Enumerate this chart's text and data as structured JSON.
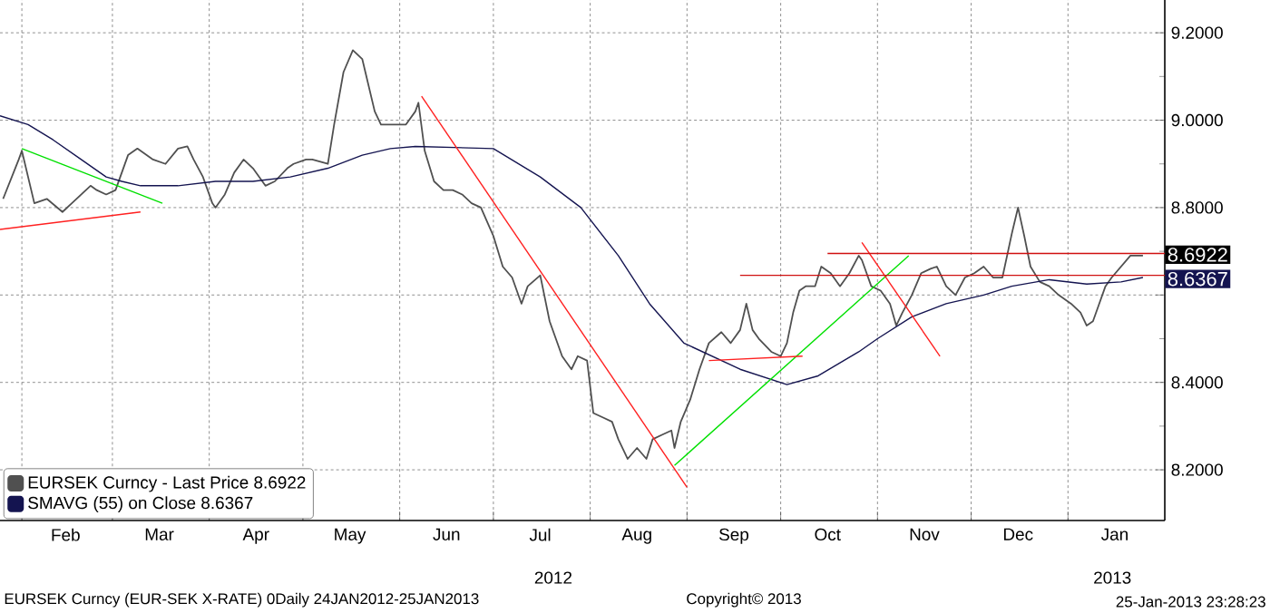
{
  "chart_data": {
    "type": "line",
    "x": [
      "2012-01-26",
      "2012-01-31",
      "2012-02-01",
      "2012-02-05",
      "2012-02-09",
      "2012-02-14",
      "2012-02-17",
      "2012-02-20",
      "2012-02-23",
      "2012-02-25",
      "2012-02-28",
      "2012-03-02",
      "2012-03-06",
      "2012-03-09",
      "2012-03-14",
      "2012-03-18",
      "2012-03-22",
      "2012-03-25",
      "2012-03-27",
      "2012-03-30",
      "2012-04-02",
      "2012-04-03",
      "2012-04-06",
      "2012-04-09",
      "2012-04-12",
      "2012-04-15",
      "2012-04-19",
      "2012-04-22",
      "2012-04-26",
      "2012-04-28",
      "2012-05-02",
      "2012-05-04",
      "2012-05-09",
      "2012-05-11",
      "2012-05-14",
      "2012-05-17",
      "2012-05-20",
      "2012-05-21",
      "2012-05-24",
      "2012-05-26",
      "2012-05-30",
      "2012-06-03",
      "2012-06-06",
      "2012-06-07",
      "2012-06-09",
      "2012-06-12",
      "2012-06-15",
      "2012-06-18",
      "2012-06-21",
      "2012-06-24",
      "2012-06-27",
      "2012-07-01",
      "2012-07-04",
      "2012-07-07",
      "2012-07-10",
      "2012-07-12",
      "2012-07-16",
      "2012-07-19",
      "2012-07-23",
      "2012-07-26",
      "2012-07-28",
      "2012-07-31",
      "2012-08-02",
      "2012-08-05",
      "2012-08-08",
      "2012-08-10",
      "2012-08-13",
      "2012-08-16",
      "2012-08-19",
      "2012-08-21",
      "2012-08-24",
      "2012-08-27",
      "2012-08-28",
      "2012-08-30",
      "2012-09-02",
      "2012-09-05",
      "2012-09-08",
      "2012-09-12",
      "2012-09-15",
      "2012-09-18",
      "2012-09-20",
      "2012-09-22",
      "2012-09-24",
      "2012-09-28",
      "2012-10-01",
      "2012-10-03",
      "2012-10-05",
      "2012-10-07",
      "2012-10-09",
      "2012-10-12",
      "2012-10-14",
      "2012-10-17",
      "2012-10-20",
      "2012-10-23",
      "2012-10-26",
      "2012-10-27",
      "2012-10-30",
      "2012-11-02",
      "2012-11-05",
      "2012-11-07",
      "2012-11-09",
      "2012-11-12",
      "2012-11-15",
      "2012-11-18",
      "2012-11-20",
      "2012-11-23",
      "2012-11-26",
      "2012-11-29",
      "2012-12-02",
      "2012-12-05",
      "2012-12-08",
      "2012-12-11",
      "2012-12-14",
      "2012-12-16",
      "2012-12-18",
      "2012-12-20",
      "2012-12-23",
      "2012-12-26",
      "2012-12-29",
      "2013-01-02",
      "2013-01-05",
      "2013-01-07",
      "2013-01-09",
      "2013-01-11",
      "2013-01-13",
      "2013-01-15",
      "2013-01-18",
      "2013-01-21",
      "2013-01-23",
      "2013-01-25"
    ],
    "series": [
      {
        "name": "EURSEK Curncy - Last Price 8.6922",
        "color": "#505050",
        "values": [
          8.82,
          8.91,
          8.93,
          8.81,
          8.82,
          8.79,
          8.81,
          8.83,
          8.85,
          8.84,
          8.83,
          8.84,
          8.92,
          8.935,
          8.91,
          8.9,
          8.935,
          8.94,
          8.91,
          8.87,
          8.81,
          8.8,
          8.83,
          8.88,
          8.91,
          8.89,
          8.85,
          8.86,
          8.89,
          8.9,
          8.91,
          8.91,
          8.9,
          8.99,
          9.11,
          9.16,
          9.14,
          9.11,
          9.02,
          8.99,
          8.99,
          8.99,
          9.02,
          9.04,
          8.93,
          8.86,
          8.84,
          8.84,
          8.83,
          8.81,
          8.8,
          8.735,
          8.665,
          8.64,
          8.58,
          8.62,
          8.645,
          8.54,
          8.46,
          8.43,
          8.46,
          8.45,
          8.33,
          8.32,
          8.31,
          8.27,
          8.225,
          8.25,
          8.225,
          8.27,
          8.28,
          8.29,
          8.25,
          8.31,
          8.36,
          8.43,
          8.49,
          8.515,
          8.49,
          8.52,
          8.58,
          8.52,
          8.5,
          8.47,
          8.46,
          8.49,
          8.56,
          8.61,
          8.62,
          8.62,
          8.665,
          8.65,
          8.62,
          8.65,
          8.69,
          8.68,
          8.62,
          8.61,
          8.58,
          8.53,
          8.56,
          8.6,
          8.65,
          8.66,
          8.665,
          8.62,
          8.6,
          8.64,
          8.65,
          8.665,
          8.64,
          8.64,
          8.74,
          8.8,
          8.735,
          8.665,
          8.63,
          8.62,
          8.6,
          8.58,
          8.56,
          8.53,
          8.54,
          8.58,
          8.62,
          8.64,
          8.665,
          8.69,
          8.69,
          8.69
        ]
      },
      {
        "name": "SMAVG (55) on Close 8.6367",
        "color": "#141450",
        "x": [
          "2012-01-25",
          "2012-02-03",
          "2012-02-11",
          "2012-02-20",
          "2012-02-28",
          "2012-03-04",
          "2012-03-10",
          "2012-03-22",
          "2012-04-03",
          "2012-04-15",
          "2012-04-27",
          "2012-05-09",
          "2012-05-20",
          "2012-05-29",
          "2012-06-06",
          "2012-07-01",
          "2012-07-16",
          "2012-07-29",
          "2012-08-10",
          "2012-08-20",
          "2012-08-31",
          "2012-09-18",
          "2012-10-03",
          "2012-10-13",
          "2012-10-26",
          "2012-11-01",
          "2012-11-12",
          "2012-11-23",
          "2012-12-05",
          "2012-12-14",
          "2012-12-26",
          "2013-01-07",
          "2013-01-18",
          "2013-01-25"
        ],
        "values": [
          9.01,
          8.99,
          8.955,
          8.91,
          8.87,
          8.86,
          8.85,
          8.85,
          8.86,
          8.86,
          8.87,
          8.89,
          8.92,
          8.935,
          8.94,
          8.935,
          8.87,
          8.8,
          8.69,
          8.58,
          8.49,
          8.43,
          8.395,
          8.415,
          8.47,
          8.5,
          8.55,
          8.58,
          8.6,
          8.62,
          8.635,
          8.625,
          8.63,
          8.64
        ]
      },
      {
        "type": "line",
        "color": "#00e000",
        "x": [
          "2012-02-01",
          "2012-03-17"
        ],
        "values": [
          8.935,
          8.81
        ]
      },
      {
        "type": "line",
        "color": "#ff2020",
        "x": [
          "2012-01-25",
          "2012-03-10"
        ],
        "values": [
          8.75,
          8.79
        ]
      },
      {
        "type": "line",
        "color": "#ff2020",
        "x": [
          "2012-06-08",
          "2012-09-01"
        ],
        "values": [
          9.055,
          8.16
        ]
      },
      {
        "type": "line",
        "color": "#00e000",
        "x": [
          "2012-08-28",
          "2012-11-11"
        ],
        "values": [
          8.21,
          8.69
        ]
      },
      {
        "type": "line",
        "color": "#ff2020",
        "x": [
          "2012-09-08",
          "2012-10-08"
        ],
        "values": [
          8.45,
          8.46
        ]
      },
      {
        "type": "line",
        "color": "#ff2020",
        "x": [
          "2012-10-27",
          "2012-11-21"
        ],
        "values": [
          8.72,
          8.46
        ]
      },
      {
        "type": "line",
        "color": "#d01010",
        "x": [
          "2012-10-16",
          "2013-02-01"
        ],
        "values": [
          8.695,
          8.695
        ]
      },
      {
        "type": "line",
        "color": "#d01010",
        "x": [
          "2012-09-18",
          "2013-02-01"
        ],
        "values": [
          8.645,
          8.645
        ]
      }
    ],
    "xlim": [
      "2012-01-25",
      "2013-02-01"
    ],
    "xticks": [
      {
        "value": "2012-02-01",
        "label": null
      },
      {
        "value": "2012-02-15",
        "label": "Feb"
      },
      {
        "value": "2012-03-01",
        "label": null
      },
      {
        "value": "2012-03-16",
        "label": "Mar"
      },
      {
        "value": "2012-04-01",
        "label": null
      },
      {
        "value": "2012-04-16",
        "label": "Apr"
      },
      {
        "value": "2012-05-01",
        "label": null
      },
      {
        "value": "2012-05-16",
        "label": "May"
      },
      {
        "value": "2012-06-01",
        "label": null
      },
      {
        "value": "2012-06-16",
        "label": "Jun"
      },
      {
        "value": "2012-07-01",
        "label": null
      },
      {
        "value": "2012-07-16",
        "label": "Jul"
      },
      {
        "value": "2012-08-01",
        "label": null
      },
      {
        "value": "2012-08-16",
        "label": "Aug"
      },
      {
        "value": "2012-09-01",
        "label": null
      },
      {
        "value": "2012-09-16",
        "label": "Sep"
      },
      {
        "value": "2012-10-01",
        "label": null
      },
      {
        "value": "2012-10-16",
        "label": "Oct"
      },
      {
        "value": "2012-11-01",
        "label": null
      },
      {
        "value": "2012-11-16",
        "label": "Nov"
      },
      {
        "value": "2012-12-01",
        "label": null
      },
      {
        "value": "2012-12-16",
        "label": "Dec"
      },
      {
        "value": "2013-01-01",
        "label": null
      },
      {
        "value": "2013-01-16",
        "label": "Jan"
      }
    ],
    "ylim": [
      8.084,
      9.275
    ],
    "yticks": [
      {
        "value": 8.2,
        "label": "8.2000"
      },
      {
        "value": 8.4,
        "label": "8.4000"
      },
      {
        "value": 8.6,
        "label": null
      },
      {
        "value": 8.8,
        "label": "8.8000"
      },
      {
        "value": 9.0,
        "label": "9.0000"
      },
      {
        "value": 9.2,
        "label": "9.2000"
      }
    ],
    "grid": true,
    "legend": "bottom left",
    "annotations": [
      {
        "text": "8.6922",
        "x": "2013-01-25",
        "y": 8.6922
      },
      {
        "text": "8.6367",
        "x": "2013-01-25",
        "y": 8.6367
      },
      "2012",
      "2013",
      "EURSEK Curncy (EUR-SEK X-RATE) 0Daily 24JAN2012-25JAN2013",
      "Copyright© 2013",
      "25-Jan-2013 23:28:23"
    ]
  }
}
